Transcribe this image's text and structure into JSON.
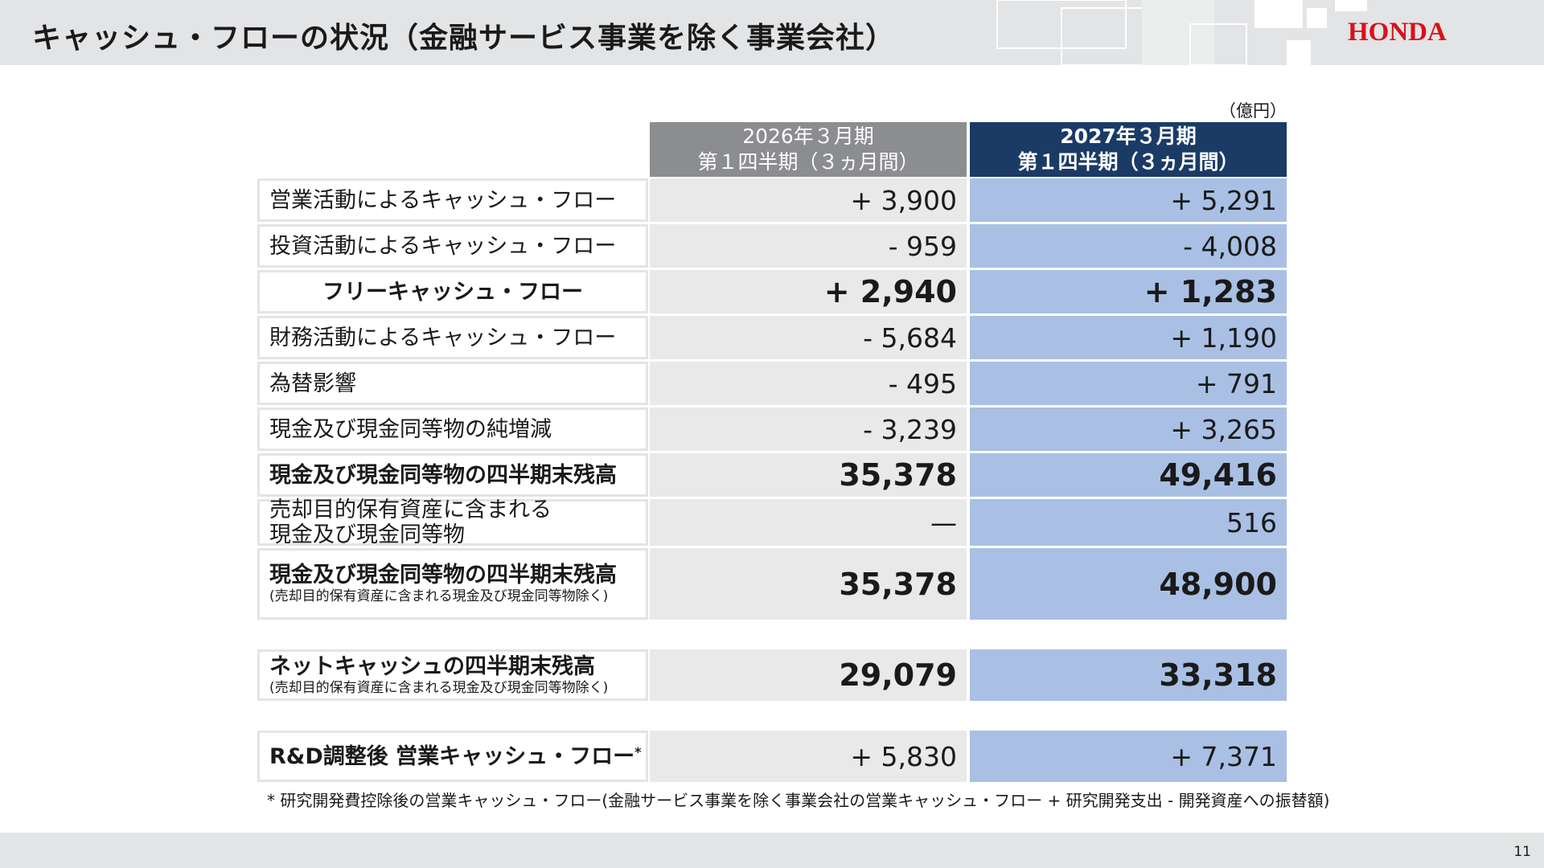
{
  "header": {
    "title": "キャッシュ・フローの状況（金融サービス事業を除く事業会社）",
    "logo_text": "HONDA",
    "logo_color": "#d8111b"
  },
  "unit": "（億円）",
  "columns": {
    "prev": {
      "line1": "2026年３月期",
      "line2": "第１四半期（３ヵ月間）"
    },
    "curr": {
      "line1": "2027年３月期",
      "line2": "第１四半期（３ヵ月間）"
    }
  },
  "rows": [
    {
      "label": "営業活動によるキャッシュ・フロー",
      "prev": "+ 3,900",
      "curr": "+ 5,291"
    },
    {
      "label": "投資活動によるキャッシュ・フロー",
      "prev": "- 959",
      "curr": "- 4,008"
    },
    {
      "label": "フリーキャッシュ・フロー",
      "prev": "+ 2,940",
      "curr": "+ 1,283"
    },
    {
      "label": "財務活動によるキャッシュ・フロー",
      "prev": "- 5,684",
      "curr": "+ 1,190"
    },
    {
      "label": "為替影響",
      "prev": "- 495",
      "curr": "+ 791"
    },
    {
      "label": "現金及び現金同等物の純増減",
      "prev": "- 3,239",
      "curr": "+ 3,265"
    },
    {
      "label": "現金及び現金同等物の四半期末残高",
      "prev": "35,378",
      "curr": "49,416"
    },
    {
      "label_line1": "売却目的保有資産に含まれる",
      "label_line2": "現金及び現金同等物",
      "prev": "—",
      "curr": "516"
    },
    {
      "label": "現金及び現金同等物の四半期末残高",
      "sublabel": "(売却目的保有資産に含まれる現金及び現金同等物除く)",
      "prev": "35,378",
      "curr": "48,900"
    },
    {
      "label": "ネットキャッシュの四半期末残高",
      "sublabel": "(売却目的保有資産に含まれる現金及び現金同等物除く)",
      "prev": "29,079",
      "curr": "33,318"
    },
    {
      "label": "R&D調整後 営業キャッシュ・フロー",
      "label_mark": "*",
      "prev": "+ 5,830",
      "curr": "+ 7,371"
    }
  ],
  "footnote": "* 研究開発費控除後の営業キャッシュ・フロー(金融サービス事業を除く事業会社の営業キャッシュ・フロー + 研究開発支出 - 開発資産への振替額)",
  "page_number": "11"
}
